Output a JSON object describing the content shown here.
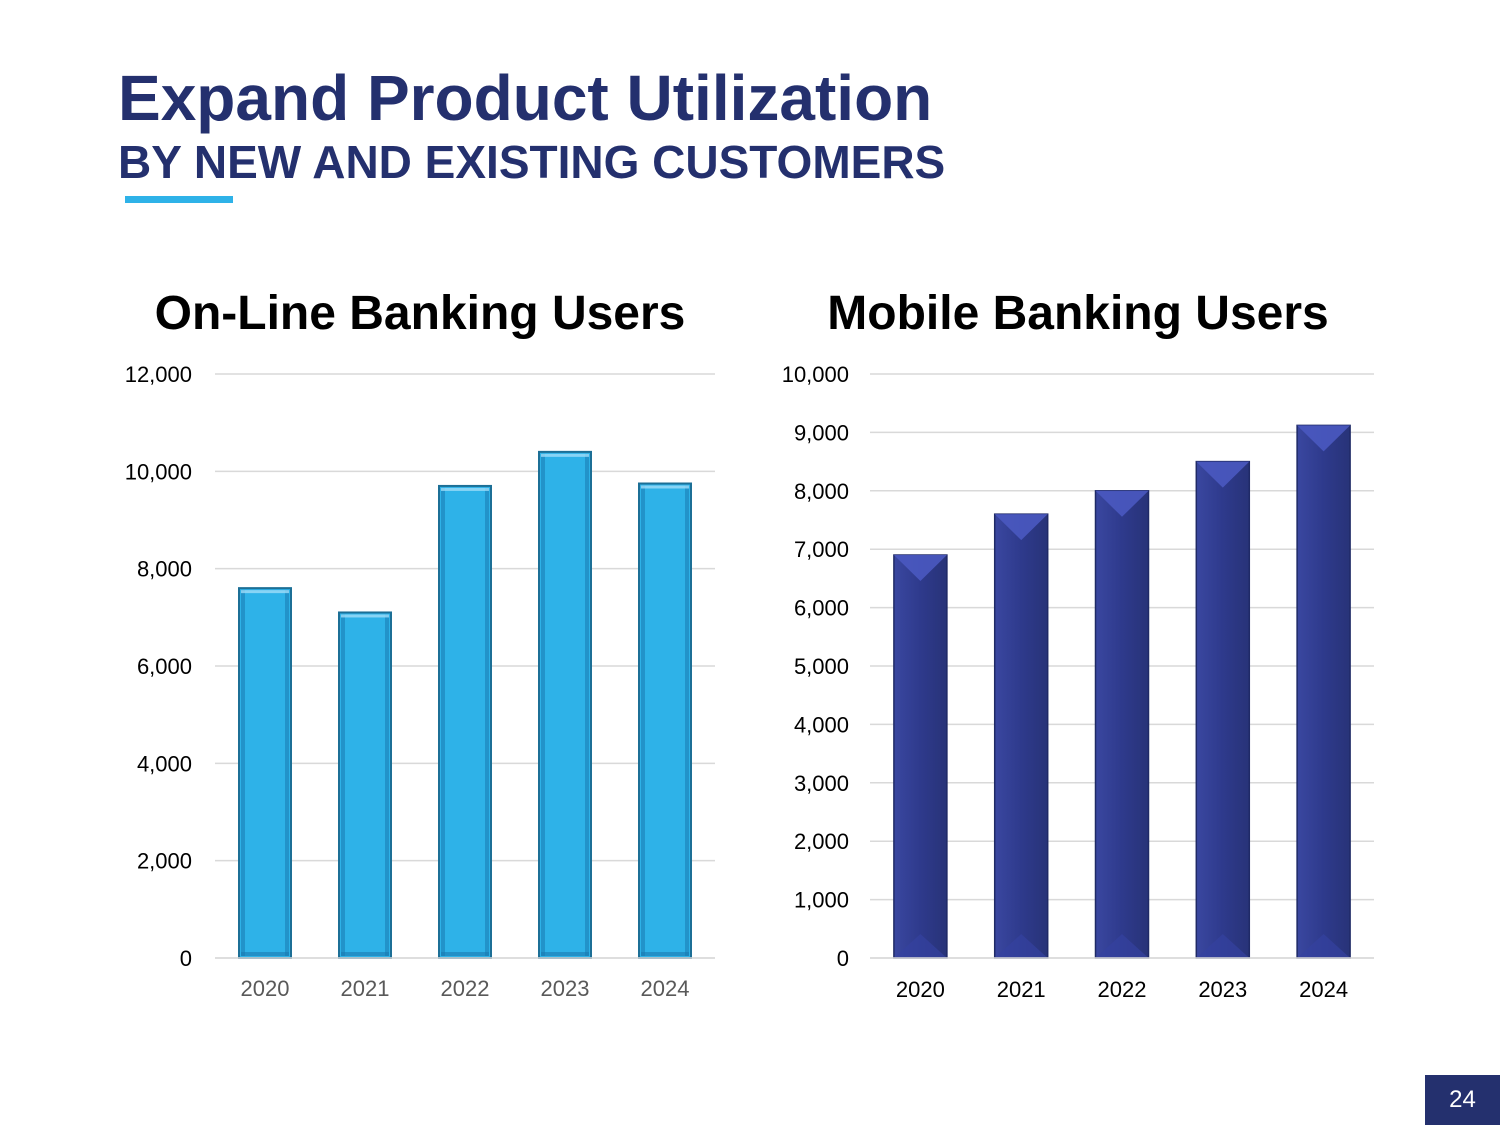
{
  "slide": {
    "title": "Expand Product Utilization",
    "subtitle": "BY NEW AND EXISTING CUSTOMERS",
    "page_number": "24",
    "accent_color": "#2eb2e8",
    "brand_color": "#24306e"
  },
  "chart_data": [
    {
      "id": "online",
      "type": "bar",
      "title": "On-Line Banking Users",
      "categories": [
        "2020",
        "2021",
        "2022",
        "2023",
        "2024"
      ],
      "values": [
        7600,
        7100,
        9700,
        10400,
        9750
      ],
      "ylim": [
        0,
        12000
      ],
      "yticks": [
        0,
        2000,
        4000,
        6000,
        8000,
        10000,
        12000
      ],
      "ytick_labels": [
        "0",
        "2,000",
        "4,000",
        "6,000",
        "8,000",
        "10,000",
        "12,000"
      ],
      "xlabel": "",
      "ylabel": "",
      "grid": true,
      "bar_color": "#2eb2e8",
      "tick_color": "#595959"
    },
    {
      "id": "mobile",
      "type": "bar",
      "title": "Mobile Banking Users",
      "categories": [
        "2020",
        "2021",
        "2022",
        "2023",
        "2024"
      ],
      "values": [
        6900,
        7600,
        8000,
        8500,
        9120
      ],
      "ylim": [
        0,
        10000
      ],
      "yticks": [
        0,
        1000,
        2000,
        3000,
        4000,
        5000,
        6000,
        7000,
        8000,
        9000,
        10000
      ],
      "ytick_labels": [
        "0",
        "1,000",
        "2,000",
        "3,000",
        "4,000",
        "5,000",
        "6,000",
        "7,000",
        "8,000",
        "9,000",
        "10,000"
      ],
      "xlabel": "",
      "ylabel": "",
      "grid": true,
      "bar_color": "#2e3a8c",
      "tick_color": "#000000"
    }
  ]
}
